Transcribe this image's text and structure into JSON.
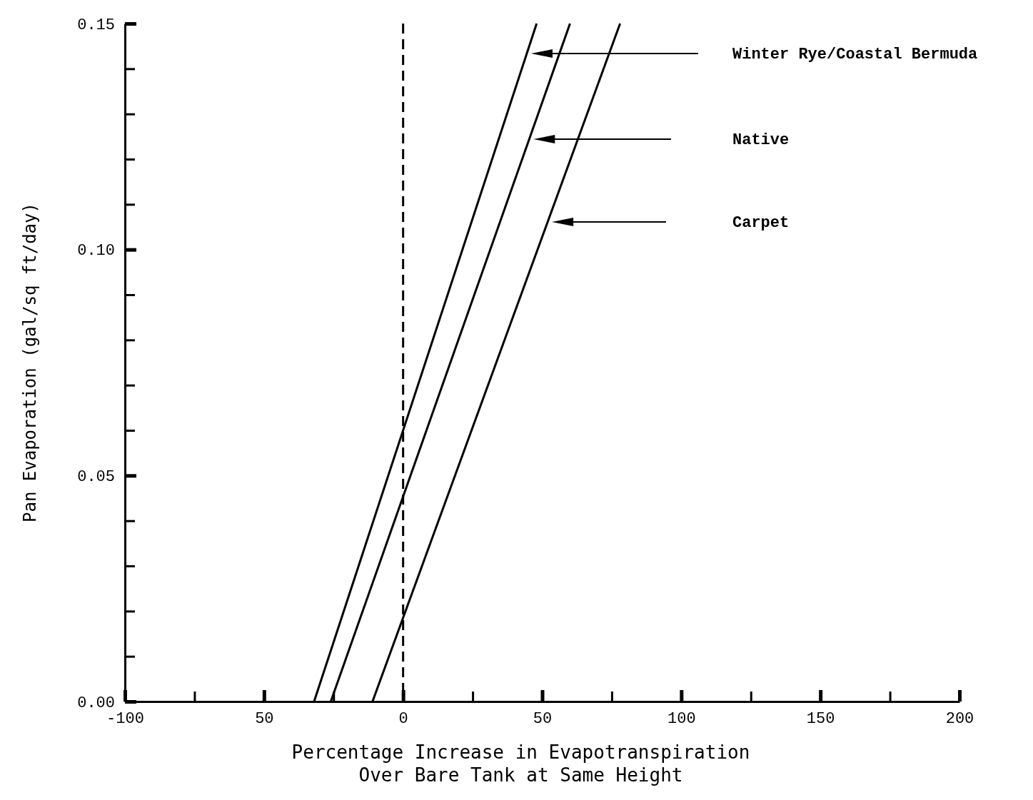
{
  "chart_data": {
    "type": "line",
    "xlabel": "Percentage Increase in Evapotranspiration\nOver Bare Tank at Same Height",
    "ylabel": "Pan Evaporation (gal/sq ft/day)",
    "xlim": [
      -100,
      200
    ],
    "ylim": [
      0,
      0.15
    ],
    "xticks": [
      -100,
      {
        "value": -75,
        "label": null
      },
      {
        "value": -50,
        "label": "50"
      },
      {
        "value": -25,
        "label": null
      },
      0,
      {
        "value": 25,
        "label": null
      },
      50,
      {
        "value": 75,
        "label": null
      },
      100,
      {
        "value": 125,
        "label": null
      },
      150,
      {
        "value": 175,
        "label": null
      },
      200
    ],
    "yticks": [
      {
        "value": 0,
        "label": "0.00"
      },
      {
        "value": 0.01,
        "label": null
      },
      {
        "value": 0.02,
        "label": null
      },
      {
        "value": 0.03,
        "label": null
      },
      {
        "value": 0.04,
        "label": null
      },
      {
        "value": 0.05,
        "label": "0.05"
      },
      {
        "value": 0.06,
        "label": null
      },
      {
        "value": 0.07,
        "label": null
      },
      {
        "value": 0.08,
        "label": null
      },
      {
        "value": 0.09,
        "label": null
      },
      {
        "value": 0.1,
        "label": "0.10"
      },
      {
        "value": 0.11,
        "label": null
      },
      {
        "value": 0.12,
        "label": null
      },
      {
        "value": 0.13,
        "label": null
      },
      {
        "value": 0.14,
        "label": null
      },
      {
        "value": 0.15,
        "label": "0.15"
      }
    ],
    "series": [
      {
        "name": "Winter Rye/Coastal Bermuda",
        "color": "#000000",
        "x": [
          -32,
          48
        ],
        "values": [
          0,
          0.15
        ]
      },
      {
        "name": "Native",
        "color": "#000000",
        "x": [
          -26,
          60
        ],
        "values": [
          0,
          0.15
        ]
      },
      {
        "name": "Carpet",
        "color": "#000000",
        "x": [
          -11,
          78
        ],
        "values": [
          0,
          0.15
        ]
      }
    ],
    "ref_lines": [
      {
        "axis": "x",
        "value": 0,
        "label": null,
        "color": "#000000",
        "line_style": "dashed"
      }
    ],
    "grid": false,
    "legend": false,
    "marker": "none",
    "line_style": "solid"
  }
}
